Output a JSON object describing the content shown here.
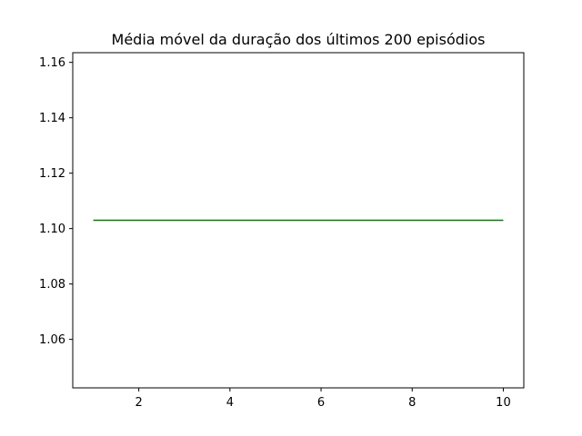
{
  "chart_data": {
    "type": "line",
    "title": "Média móvel da duração dos últimos 200 episódios",
    "xlabel": "",
    "ylabel": "",
    "xlim": [
      0.55,
      10.45
    ],
    "ylim": [
      1.0425,
      1.1635
    ],
    "x_ticks": [
      2,
      4,
      6,
      8,
      10
    ],
    "y_ticks": [
      1.06,
      1.08,
      1.1,
      1.12,
      1.14,
      1.16
    ],
    "x_tick_labels": [
      "2",
      "4",
      "6",
      "8",
      "10"
    ],
    "y_tick_labels": [
      "1.06",
      "1.08",
      "1.10",
      "1.12",
      "1.14",
      "1.16"
    ],
    "grid": false,
    "series": [
      {
        "color": "#008000",
        "x": [
          1,
          2,
          3,
          4,
          5,
          6,
          7,
          8,
          9,
          10
        ],
        "values": [
          1.103,
          1.103,
          1.103,
          1.103,
          1.103,
          1.103,
          1.103,
          1.103,
          1.103,
          1.103
        ]
      }
    ]
  }
}
